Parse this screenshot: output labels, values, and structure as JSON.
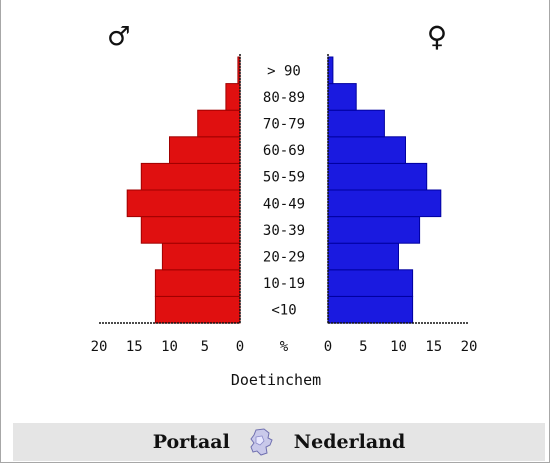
{
  "chart_data": {
    "type": "bar",
    "subtype": "population-pyramid",
    "categories": [
      "<10",
      "10-19",
      "20-29",
      "30-39",
      "40-49",
      "50-59",
      "60-69",
      "70-79",
      "80-89",
      "> 90"
    ],
    "series": [
      {
        "name": "♂",
        "values": [
          12,
          12,
          11,
          14,
          16,
          14,
          10,
          6,
          2,
          0.3
        ]
      },
      {
        "name": "♀",
        "values": [
          12,
          12,
          10,
          13,
          16,
          14,
          11,
          8,
          4,
          0.7
        ]
      }
    ],
    "x_ticks": [
      "20",
      "15",
      "10",
      "5",
      "0",
      "%",
      "0",
      "5",
      "10",
      "15",
      "20"
    ],
    "xlabel": "Doetinchem",
    "xlim": [
      0,
      20
    ],
    "colors": {
      "male": "#e01010",
      "male_dark": "#a00000",
      "female": "#1a1ae0",
      "female_dark": "#0000a0"
    }
  },
  "symbols": {
    "male": "♂",
    "female": "♀"
  },
  "portal": {
    "left_label": "Portaal",
    "right_label": "Nederland",
    "icon": "netherlands-map-icon"
  }
}
